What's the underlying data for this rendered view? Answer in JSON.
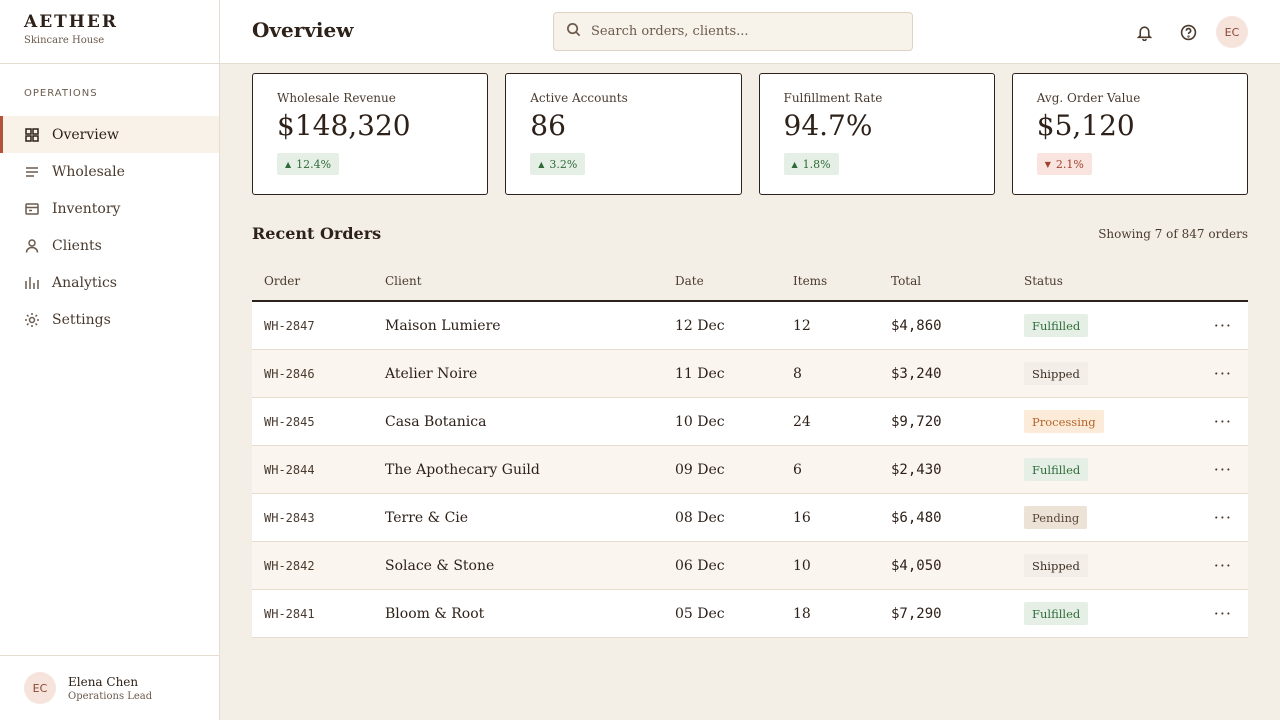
{
  "brand": {
    "name": "AETHER",
    "subtitle": "Skincare House"
  },
  "sidebar": {
    "section_label": "OPERATIONS",
    "items": [
      {
        "label": "Overview",
        "icon": "grid-icon",
        "active": true
      },
      {
        "label": "Wholesale",
        "icon": "list-icon",
        "active": false
      },
      {
        "label": "Inventory",
        "icon": "box-icon",
        "active": false
      },
      {
        "label": "Clients",
        "icon": "user-icon",
        "active": false
      },
      {
        "label": "Analytics",
        "icon": "bar-chart-icon",
        "active": false
      },
      {
        "label": "Settings",
        "icon": "gear-icon",
        "active": false
      }
    ],
    "user": {
      "initials": "EC",
      "name": "Elena Chen",
      "role": "Operations Lead"
    }
  },
  "header": {
    "title": "Overview",
    "search_placeholder": "Search orders, clients...",
    "avatar_initials": "EC"
  },
  "stats": [
    {
      "label": "Wholesale Revenue",
      "value": "$148,320",
      "change": "12.4%",
      "direction": "up"
    },
    {
      "label": "Active Accounts",
      "value": "86",
      "change": "3.2%",
      "direction": "up"
    },
    {
      "label": "Fulfillment Rate",
      "value": "94.7%",
      "change": "1.8%",
      "direction": "up"
    },
    {
      "label": "Avg. Order Value",
      "value": "$5,120",
      "change": "2.1%",
      "direction": "down"
    }
  ],
  "orders": {
    "title": "Recent Orders",
    "meta": "Showing 7 of 847 orders",
    "columns": [
      "Order",
      "Client",
      "Date",
      "Items",
      "Total",
      "Status"
    ],
    "rows": [
      {
        "order": "WH-2847",
        "client": "Maison Lumiere",
        "date": "12 Dec",
        "items": "12",
        "total": "$4,860",
        "status": "Fulfilled"
      },
      {
        "order": "WH-2846",
        "client": "Atelier Noire",
        "date": "11 Dec",
        "items": "8",
        "total": "$3,240",
        "status": "Shipped"
      },
      {
        "order": "WH-2845",
        "client": "Casa Botanica",
        "date": "10 Dec",
        "items": "24",
        "total": "$9,720",
        "status": "Processing"
      },
      {
        "order": "WH-2844",
        "client": "The Apothecary Guild",
        "date": "09 Dec",
        "items": "6",
        "total": "$2,430",
        "status": "Fulfilled"
      },
      {
        "order": "WH-2843",
        "client": "Terre & Cie",
        "date": "08 Dec",
        "items": "16",
        "total": "$6,480",
        "status": "Pending"
      },
      {
        "order": "WH-2842",
        "client": "Solace & Stone",
        "date": "06 Dec",
        "items": "10",
        "total": "$4,050",
        "status": "Shipped"
      },
      {
        "order": "WH-2841",
        "client": "Bloom & Root",
        "date": "05 Dec",
        "items": "18",
        "total": "$7,290",
        "status": "Fulfilled"
      }
    ]
  },
  "colors": {
    "accent": "#b4533a",
    "ink": "#2e2119",
    "background": "#f4efe6"
  }
}
